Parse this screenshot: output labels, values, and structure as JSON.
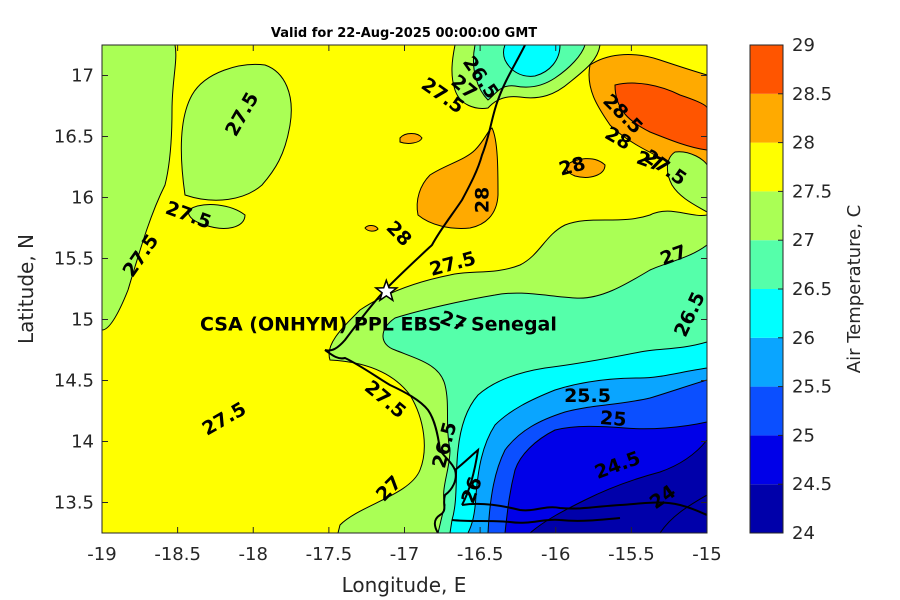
{
  "title": "Valid for 22-Aug-2025 00:00:00 GMT",
  "xlabel": "Longitude, E",
  "ylabel": "Latitude, N",
  "colorbar_label": "Air Temperature, C",
  "site_label": "CSA (ONHYM) PPL EBS  – Senegal",
  "site_location": {
    "lon": -17.12,
    "lat": 15.23
  },
  "chart_data": {
    "type": "heatmap",
    "xlim": [
      -19,
      -15
    ],
    "ylim": [
      13.25,
      17.25
    ],
    "x_ticks": [
      -19,
      -18.5,
      -18,
      -17.5,
      -17,
      -16.5,
      -16,
      -15.5,
      -15
    ],
    "y_ticks": [
      13.5,
      14,
      14.5,
      15,
      15.5,
      16,
      16.5,
      17
    ],
    "x_tick_labels": [
      "-19",
      "-18.5",
      "-18",
      "-17.5",
      "-17",
      "-16.5",
      "-16",
      "-15.5",
      "-15"
    ],
    "y_tick_labels": [
      "13.5",
      "14",
      "14.5",
      "15",
      "15.5",
      "16",
      "16.5",
      "17"
    ],
    "colorbar": {
      "levels": [
        24,
        24.5,
        25,
        25.5,
        26,
        26.5,
        27,
        27.5,
        28,
        28.5,
        29
      ],
      "tick_labels": [
        "24",
        "24.5",
        "25",
        "25.5",
        "26",
        "26.5",
        "27",
        "27.5",
        "28",
        "28.5",
        "29"
      ],
      "colors": [
        "#0000AA",
        "#0000E8",
        "#0B4FFF",
        "#0AA5FF",
        "#00FFFF",
        "#55FFAA",
        "#AAFF55",
        "#FFFF00",
        "#FFAA00",
        "#FF5500",
        "#FF0000"
      ]
    },
    "contour_labels": [
      {
        "text": "26.5",
        "lon": -16.5,
        "lat": 16.98,
        "angle": 55
      },
      {
        "text": "27",
        "lon": -16.61,
        "lat": 16.9,
        "angle": 40
      },
      {
        "text": "27.5",
        "lon": -16.75,
        "lat": 16.83,
        "angle": 35
      },
      {
        "text": "27.5",
        "lon": -18.07,
        "lat": 16.68,
        "angle": -60
      },
      {
        "text": "28.5",
        "lon": -15.56,
        "lat": 16.68,
        "angle": 45
      },
      {
        "text": "28",
        "lon": -15.59,
        "lat": 16.48,
        "angle": 30
      },
      {
        "text": "28",
        "lon": -15.89,
        "lat": 16.25,
        "angle": -15
      },
      {
        "text": "27",
        "lon": -15.38,
        "lat": 16.29,
        "angle": 20
      },
      {
        "text": "27.5",
        "lon": -15.28,
        "lat": 16.24,
        "angle": 35
      },
      {
        "text": "28",
        "lon": -16.48,
        "lat": 15.98,
        "angle": -90
      },
      {
        "text": "27.5",
        "lon": -18.43,
        "lat": 15.85,
        "angle": 20
      },
      {
        "text": "28",
        "lon": -17.04,
        "lat": 15.7,
        "angle": 45
      },
      {
        "text": "27.5",
        "lon": -18.74,
        "lat": 15.52,
        "angle": -55
      },
      {
        "text": "27.5",
        "lon": -16.68,
        "lat": 15.45,
        "angle": -15
      },
      {
        "text": "27",
        "lon": -15.22,
        "lat": 15.52,
        "angle": -20
      },
      {
        "text": "27",
        "lon": -16.68,
        "lat": 14.98,
        "angle": 20
      },
      {
        "text": "26.5",
        "lon": -15.11,
        "lat": 15.04,
        "angle": -65
      },
      {
        "text": "27.5",
        "lon": -17.13,
        "lat": 14.34,
        "angle": 40
      },
      {
        "text": "25.5",
        "lon": -15.79,
        "lat": 14.37,
        "angle": 0
      },
      {
        "text": "27.5",
        "lon": -18.19,
        "lat": 14.18,
        "angle": -30
      },
      {
        "text": "25",
        "lon": -15.62,
        "lat": 14.18,
        "angle": 5
      },
      {
        "text": "26.5",
        "lon": -16.73,
        "lat": 13.97,
        "angle": -75
      },
      {
        "text": "24.5",
        "lon": -15.59,
        "lat": 13.8,
        "angle": -20
      },
      {
        "text": "26",
        "lon": -16.55,
        "lat": 13.6,
        "angle": -70
      },
      {
        "text": "27",
        "lon": -17.1,
        "lat": 13.61,
        "angle": -45
      },
      {
        "text": "24",
        "lon": -15.29,
        "lat": 13.54,
        "angle": -35
      }
    ]
  }
}
